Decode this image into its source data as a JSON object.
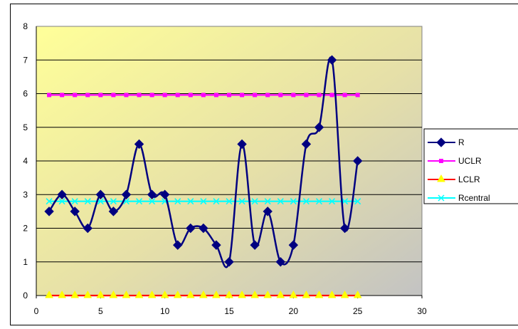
{
  "chart_data": {
    "type": "line",
    "xlim": [
      0,
      30
    ],
    "ylim": [
      0,
      8
    ],
    "x_ticks": [
      "0",
      "5",
      "10",
      "15",
      "20",
      "25",
      "30"
    ],
    "y_ticks": [
      "0",
      "1",
      "2",
      "3",
      "4",
      "5",
      "6",
      "7",
      "8"
    ],
    "grid": "horizontal",
    "legend_position": "right",
    "plot_background": "gradient yellow to gray",
    "series": [
      {
        "name": "R",
        "color": "#000080",
        "marker": "diamond",
        "smooth": true,
        "x": [
          1,
          2,
          3,
          4,
          5,
          6,
          7,
          8,
          9,
          10,
          11,
          12,
          13,
          14,
          15,
          16,
          17,
          18,
          19,
          20,
          21,
          22,
          23,
          24,
          25
        ],
        "y": [
          2.5,
          3,
          2.5,
          2,
          3,
          2.5,
          3,
          4.5,
          3,
          3,
          1.5,
          2,
          2,
          1.5,
          1,
          4.5,
          1.5,
          2.5,
          1,
          1.5,
          4.5,
          5,
          7,
          2,
          4
        ]
      },
      {
        "name": "UCLR",
        "color": "#ff00ff",
        "marker": "square",
        "smooth": false,
        "x": [
          1,
          2,
          3,
          4,
          5,
          6,
          7,
          8,
          9,
          10,
          11,
          12,
          13,
          14,
          15,
          16,
          17,
          18,
          19,
          20,
          21,
          22,
          23,
          24,
          25
        ],
        "y": [
          5.96,
          5.96,
          5.96,
          5.96,
          5.96,
          5.96,
          5.96,
          5.96,
          5.96,
          5.96,
          5.96,
          5.96,
          5.96,
          5.96,
          5.96,
          5.96,
          5.96,
          5.96,
          5.96,
          5.96,
          5.96,
          5.96,
          5.96,
          5.96,
          5.96
        ]
      },
      {
        "name": "LCLR",
        "color": "#ff0000",
        "marker": "triangle",
        "marker_color": "#ffff00",
        "smooth": false,
        "x": [
          1,
          2,
          3,
          4,
          5,
          6,
          7,
          8,
          9,
          10,
          11,
          12,
          13,
          14,
          15,
          16,
          17,
          18,
          19,
          20,
          21,
          22,
          23,
          24,
          25
        ],
        "y": [
          0,
          0,
          0,
          0,
          0,
          0,
          0,
          0,
          0,
          0,
          0,
          0,
          0,
          0,
          0,
          0,
          0,
          0,
          0,
          0,
          0,
          0,
          0,
          0,
          0
        ]
      },
      {
        "name": "Rcentral",
        "color": "#00ffff",
        "marker": "x",
        "smooth": false,
        "x": [
          1,
          2,
          3,
          4,
          5,
          6,
          7,
          8,
          9,
          10,
          11,
          12,
          13,
          14,
          15,
          16,
          17,
          18,
          19,
          20,
          21,
          22,
          23,
          24,
          25
        ],
        "y": [
          2.8,
          2.8,
          2.8,
          2.8,
          2.8,
          2.8,
          2.8,
          2.8,
          2.8,
          2.8,
          2.8,
          2.8,
          2.8,
          2.8,
          2.8,
          2.8,
          2.8,
          2.8,
          2.8,
          2.8,
          2.8,
          2.8,
          2.8,
          2.8,
          2.8
        ]
      }
    ]
  }
}
